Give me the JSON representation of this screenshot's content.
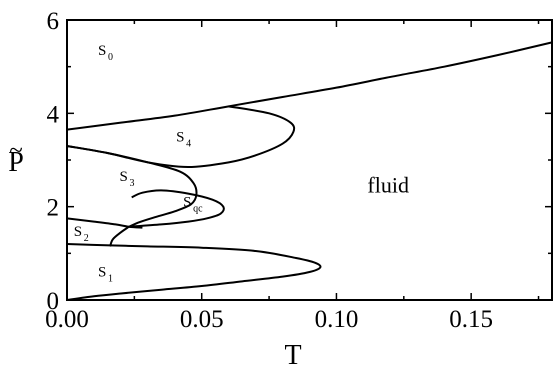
{
  "chart_data": {
    "type": "line",
    "title": "",
    "xlabel": "T",
    "ylabel": "P",
    "ylabel_accent": "~",
    "xlim": [
      0.0,
      0.18
    ],
    "ylim": [
      0,
      6
    ],
    "x_ticks": [
      "0.00",
      "0.05",
      "0.10",
      "0.15"
    ],
    "x_tick_values": [
      0.0,
      0.05,
      0.1,
      0.15
    ],
    "y_ticks": [
      "0",
      "2",
      "4",
      "6"
    ],
    "y_tick_values": [
      0,
      2,
      4,
      6
    ],
    "grid": false,
    "series": [
      {
        "x": [
          0.0,
          0.02,
          0.04,
          0.06,
          0.08,
          0.1,
          0.12,
          0.14,
          0.16,
          0.18
        ],
        "y": [
          3.65,
          3.8,
          3.95,
          4.15,
          4.35,
          4.55,
          4.78,
          5.0,
          5.25,
          5.52
        ]
      },
      {
        "x": [
          0.06,
          0.075,
          0.083,
          0.084,
          0.08,
          0.07,
          0.06,
          0.045,
          0.03,
          0.015,
          0.0
        ],
        "y": [
          4.15,
          4.0,
          3.8,
          3.6,
          3.35,
          3.1,
          2.95,
          2.85,
          2.95,
          3.15,
          3.3
        ]
      },
      {
        "x": [
          0.0,
          0.015,
          0.03,
          0.042,
          0.047,
          0.048,
          0.046,
          0.04,
          0.033,
          0.027,
          0.023
        ],
        "y": [
          3.3,
          3.15,
          2.95,
          2.75,
          2.5,
          2.25,
          2.05,
          1.9,
          1.78,
          1.67,
          1.57
        ]
      },
      {
        "x": [
          0.023,
          0.035,
          0.045,
          0.052,
          0.057,
          0.058,
          0.054,
          0.045,
          0.035,
          0.028,
          0.024
        ],
        "y": [
          1.57,
          1.62,
          1.68,
          1.75,
          1.85,
          2.0,
          2.15,
          2.28,
          2.35,
          2.3,
          2.2
        ]
      },
      {
        "x": [
          0.0,
          0.01,
          0.018,
          0.023,
          0.028
        ],
        "y": [
          1.75,
          1.68,
          1.62,
          1.57,
          1.55
        ]
      },
      {
        "x": [
          0.023,
          0.02,
          0.017,
          0.016
        ],
        "y": [
          1.57,
          1.45,
          1.3,
          1.15
        ]
      },
      {
        "x": [
          0.0,
          0.016,
          0.03,
          0.05,
          0.07,
          0.085,
          0.092,
          0.094,
          0.09,
          0.08,
          0.065,
          0.05,
          0.035,
          0.02,
          0.01,
          0.0
        ],
        "y": [
          1.2,
          1.17,
          1.15,
          1.12,
          1.05,
          0.9,
          0.8,
          0.7,
          0.6,
          0.5,
          0.4,
          0.3,
          0.22,
          0.14,
          0.08,
          0.0
        ]
      }
    ],
    "annotations": [
      {
        "text": "S",
        "sub": "0",
        "x": 0.0115,
        "y": 5.25
      },
      {
        "text": "S",
        "sub": "4",
        "x": 0.0405,
        "y": 3.4
      },
      {
        "text": "S",
        "sub": "3",
        "x": 0.0195,
        "y": 2.55
      },
      {
        "text": "S",
        "sub": "qc",
        "x": 0.0431,
        "y": 2.0
      },
      {
        "text": "S",
        "sub": "2",
        "x": 0.0025,
        "y": 1.37
      },
      {
        "text": "S",
        "sub": "1",
        "x": 0.0115,
        "y": 0.5
      },
      {
        "text": "fluid",
        "x": 0.1115,
        "y": 2.3,
        "style": "large"
      }
    ]
  }
}
